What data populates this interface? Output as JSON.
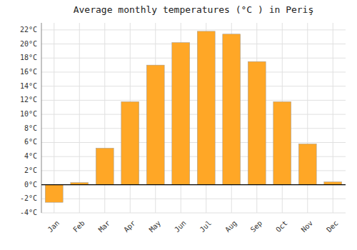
{
  "chart_data": {
    "type": "bar",
    "title": "Average monthly temperatures (°C ) in Periş",
    "categories": [
      "Jan",
      "Feb",
      "Mar",
      "Apr",
      "May",
      "Jun",
      "Jul",
      "Aug",
      "Sep",
      "Oct",
      "Nov",
      "Dec"
    ],
    "values": [
      -2.5,
      0.3,
      5.2,
      11.8,
      17.0,
      20.2,
      21.8,
      21.4,
      17.5,
      11.8,
      5.8,
      0.4
    ],
    "color": "#FFA726",
    "ylim": [
      -4,
      23
    ],
    "yticks": [
      {
        "value": -4,
        "label": "-4°C"
      },
      {
        "value": -2,
        "label": "-2°C"
      },
      {
        "value": 0,
        "label": "0°C"
      },
      {
        "value": 2,
        "label": "2°C"
      },
      {
        "value": 4,
        "label": "4°C"
      },
      {
        "value": 6,
        "label": "6°C"
      },
      {
        "value": 8,
        "label": "8°C"
      },
      {
        "value": 10,
        "label": "10°C"
      },
      {
        "value": 12,
        "label": "12°C"
      },
      {
        "value": 14,
        "label": "14°C"
      },
      {
        "value": 16,
        "label": "16°C"
      },
      {
        "value": 18,
        "label": "18°C"
      },
      {
        "value": 20,
        "label": "20°C"
      },
      {
        "value": 22,
        "label": "22°C"
      }
    ],
    "grid": true
  }
}
